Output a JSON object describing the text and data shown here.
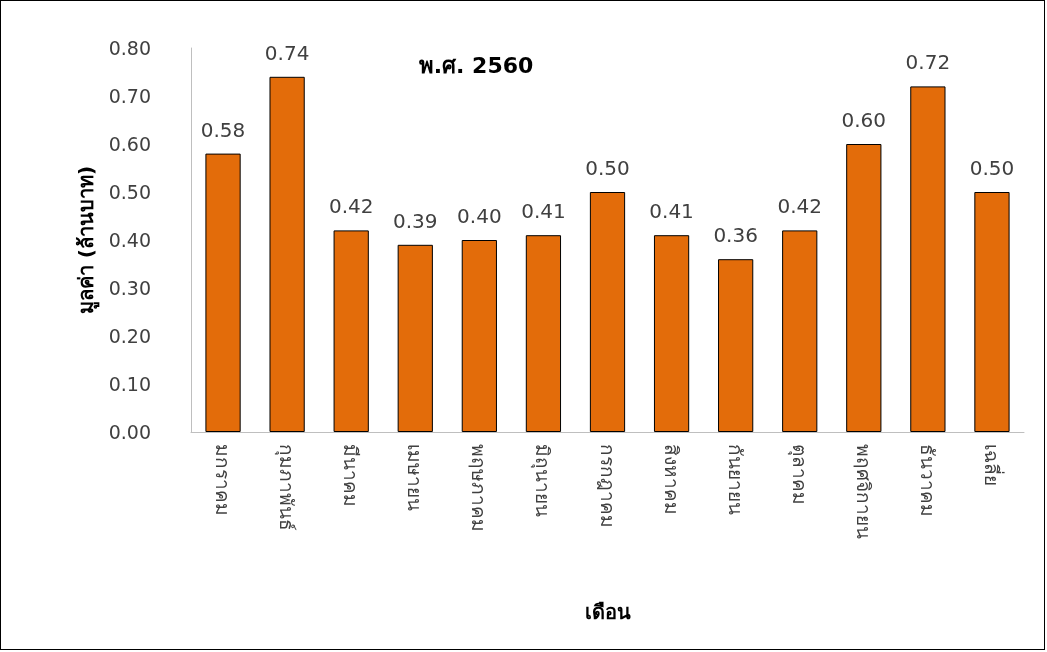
{
  "chart_data": {
    "type": "bar",
    "title": "พ.ศ. 2560",
    "xlabel": "เดือน",
    "ylabel": "มูลค่า (ล้านบาท)",
    "categories": [
      "มกราคม",
      "กุมภาพันธ์",
      "มีนาคม",
      "เมษายน",
      "พฤษภาคม",
      "มิถุนายน",
      "กรกฎาคม",
      "สิงหาคม",
      "กันยายน",
      "ตุลาคม",
      "พฤศจิกายน",
      "ธันวาคม",
      "เฉลี่ย"
    ],
    "values": [
      0.58,
      0.74,
      0.42,
      0.39,
      0.4,
      0.41,
      0.5,
      0.41,
      0.36,
      0.42,
      0.6,
      0.72,
      0.5
    ],
    "value_labels": [
      "0.58",
      "0.74",
      "0.42",
      "0.39",
      "0.40",
      "0.41",
      "0.50",
      "0.41",
      "0.36",
      "0.42",
      "0.60",
      "0.72",
      "0.50"
    ],
    "color": "#e36c0a",
    "ylim": [
      0,
      0.8
    ],
    "yticks": [
      {
        "value": 0,
        "label": "0.00"
      },
      {
        "value": 0.1,
        "label": "0.10"
      },
      {
        "value": 0.2,
        "label": "0.20"
      },
      {
        "value": 0.3,
        "label": "0.30"
      },
      {
        "value": 0.4,
        "label": "0.40"
      },
      {
        "value": 0.5,
        "label": "0.50"
      },
      {
        "value": 0.6,
        "label": "0.60"
      },
      {
        "value": 0.7,
        "label": "0.70"
      },
      {
        "value": 0.8,
        "label": "0.80"
      }
    ],
    "grid": false
  }
}
